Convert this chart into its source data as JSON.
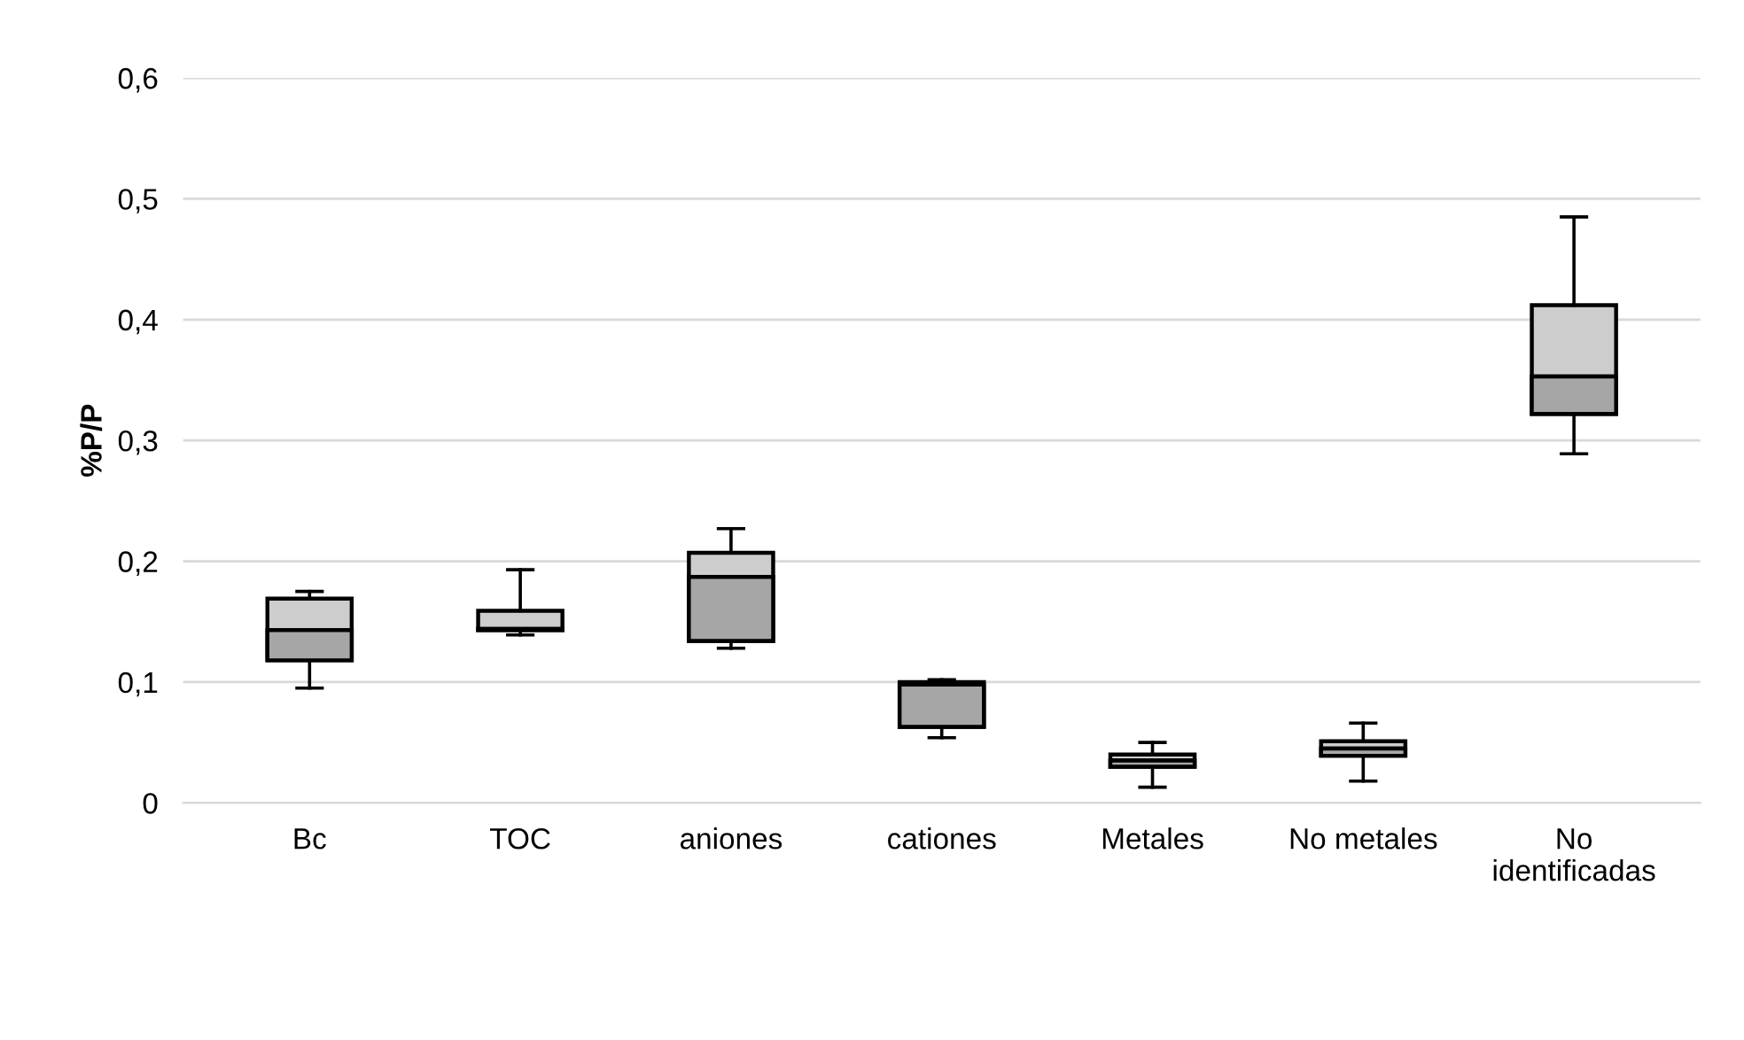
{
  "chart_data": {
    "type": "box",
    "ylabel": "%P/P",
    "categories": [
      "Bc",
      "TOC",
      "aniones",
      "cationes",
      "Metales",
      "No metales",
      "No\nidentificadas"
    ],
    "series": [
      {
        "color": "#a6a6a6",
        "colors": [
          "#cdcdcd",
          "#cdcdcd",
          "#cdcdcd",
          "#cdcdcd",
          "#cdcdcd",
          "#cdcdcd",
          "#cdcdcd"
        ],
        "boxes": [
          {
            "low": 0.095,
            "q1": 0.118,
            "median": 0.143,
            "q3": 0.169,
            "high": 0.175
          },
          {
            "low": 0.139,
            "q1": 0.143,
            "median": 0.144,
            "q3": 0.159,
            "high": 0.193
          },
          {
            "low": 0.128,
            "q1": 0.134,
            "median": 0.187,
            "q3": 0.207,
            "high": 0.227
          },
          {
            "low": 0.054,
            "q1": 0.063,
            "median": 0.098,
            "q3": 0.1,
            "high": 0.102
          },
          {
            "low": 0.013,
            "q1": 0.03,
            "median": 0.035,
            "q3": 0.04,
            "high": 0.05
          },
          {
            "low": 0.018,
            "q1": 0.039,
            "median": 0.045,
            "q3": 0.051,
            "high": 0.066
          },
          {
            "low": 0.289,
            "q1": 0.322,
            "median": 0.353,
            "q3": 0.412,
            "high": 0.485
          }
        ]
      }
    ],
    "ylim": [
      0,
      0.6
    ],
    "yticks": [
      0,
      {
        "value": 0.1,
        "label": "0,1"
      },
      {
        "value": 0.2,
        "label": "0,2"
      },
      {
        "value": 0.3,
        "label": "0,3"
      },
      {
        "value": 0.4,
        "label": "0,4"
      },
      {
        "value": 0.5,
        "label": "0,5"
      },
      {
        "value": 0.6,
        "label": "0,6"
      }
    ],
    "grid": "y",
    "legend": false
  }
}
